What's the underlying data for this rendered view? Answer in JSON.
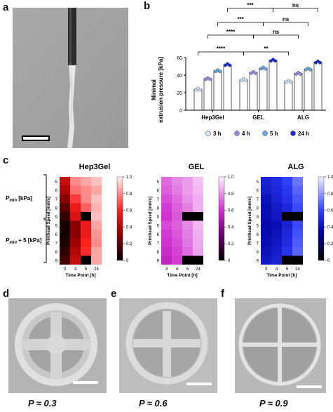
{
  "panels": {
    "a": "a",
    "b": "b",
    "c": "c",
    "d": "d",
    "e": "e",
    "f": "f"
  },
  "colors": {
    "h3": "#d4e4f4",
    "h4": "#9a8fdc",
    "h5": "#6aa9e2",
    "h24": "#1c2bd0",
    "bar_fill": "#ffffff",
    "bar_stroke": "#333333"
  },
  "chart_b": {
    "type": "bar",
    "ylabel_line1": "Minimal",
    "ylabel_line2": "extrusion pressure [kPa]",
    "ylim": [
      0,
      60
    ],
    "yticks": [
      "0",
      "20",
      "40",
      "60"
    ],
    "categories": [
      "Hep3Gel",
      "GEL",
      "ALG"
    ],
    "series": [
      {
        "name": "3 h",
        "values": [
          24,
          35,
          33
        ]
      },
      {
        "name": "4 h",
        "values": [
          36,
          43,
          42
        ]
      },
      {
        "name": "5 h",
        "values": [
          45,
          48,
          47
        ]
      },
      {
        "name": "24 h",
        "values": [
          52,
          57,
          55
        ]
      }
    ],
    "significance": [
      {
        "label": "****",
        "from": 0,
        "to": 1,
        "level": 1
      },
      {
        "label": "**",
        "from": 1,
        "to": 2,
        "level": 1
      },
      {
        "label": "****",
        "from": 0,
        "to": 1,
        "level": 2
      },
      {
        "label": "ns",
        "from": 1,
        "to": 2,
        "level": 2
      },
      {
        "label": "***",
        "from": 0,
        "to": 1,
        "level": 3
      },
      {
        "label": "ns",
        "from": 1,
        "to": 2,
        "level": 3
      },
      {
        "label": "***",
        "from": 0,
        "to": 1,
        "level": 4
      },
      {
        "label": "ns",
        "from": 1,
        "to": 2,
        "level": 4
      }
    ]
  },
  "heatmaps": {
    "row_group_labels": [
      "P",
      "min",
      " [kPa]",
      "P",
      "min",
      " + 5  [kPa]"
    ],
    "ylabel": "Printhead Speed [mm/s]",
    "xlabel": "Time Point [h]",
    "speeds": [
      "5",
      "6",
      "7",
      "8",
      "9",
      "5",
      "6",
      "7",
      "8",
      "9"
    ],
    "timepoints": [
      "3",
      "4",
      "5",
      "24"
    ],
    "colorbar_ticks": [
      "1.0",
      "0.8",
      "0.6",
      "0.4",
      "0.2",
      "0"
    ],
    "maps": [
      {
        "title": "Hep3Gel",
        "values": [
          [
            0.45,
            0.8,
            0.85,
            0.9
          ],
          [
            0.4,
            0.75,
            0.8,
            0.85
          ],
          [
            0.3,
            0.65,
            0.8,
            0.9
          ],
          [
            0.2,
            0.55,
            0.72,
            0.88
          ],
          [
            0.12,
            0.5,
            0.0,
            0.9
          ],
          [
            0.05,
            0.3,
            0.55,
            0.85
          ],
          [
            0.04,
            0.3,
            0.55,
            0.82
          ],
          [
            0.06,
            0.35,
            0.6,
            0.8
          ],
          [
            0.1,
            0.4,
            0.62,
            0.85
          ],
          [
            0.15,
            0.45,
            0.0,
            0.85
          ]
        ]
      },
      {
        "title": "GEL",
        "values": [
          [
            0.72,
            0.78,
            0.82,
            0.9
          ],
          [
            0.7,
            0.76,
            0.82,
            0.88
          ],
          [
            0.66,
            0.72,
            0.8,
            0.86
          ],
          [
            0.62,
            0.7,
            0.76,
            0.86
          ],
          [
            0.6,
            0.68,
            0.0,
            0.0
          ],
          [
            0.65,
            0.7,
            0.78,
            0.88
          ],
          [
            0.62,
            0.68,
            0.76,
            0.86
          ],
          [
            0.6,
            0.66,
            0.74,
            0.85
          ],
          [
            0.58,
            0.64,
            0.72,
            0.84
          ],
          [
            0.55,
            0.62,
            0.0,
            0.0
          ]
        ]
      },
      {
        "title": "ALG",
        "values": [
          [
            0.48,
            0.52,
            0.6,
            0.72
          ],
          [
            0.46,
            0.5,
            0.56,
            0.68
          ],
          [
            0.42,
            0.48,
            0.54,
            0.65
          ],
          [
            0.4,
            0.45,
            0.5,
            0.62
          ],
          [
            0.4,
            0.44,
            0.0,
            0.0
          ],
          [
            0.38,
            0.4,
            0.48,
            0.62
          ],
          [
            0.38,
            0.42,
            0.5,
            0.64
          ],
          [
            0.4,
            0.44,
            0.52,
            0.66
          ],
          [
            0.42,
            0.46,
            0.55,
            0.68
          ],
          [
            0.44,
            0.48,
            0.0,
            0.0
          ]
        ]
      }
    ]
  },
  "images": {
    "d_label": "P ≈ 0.3",
    "e_label": "P ≈ 0.6",
    "f_label": "P ≈ 0.9"
  }
}
